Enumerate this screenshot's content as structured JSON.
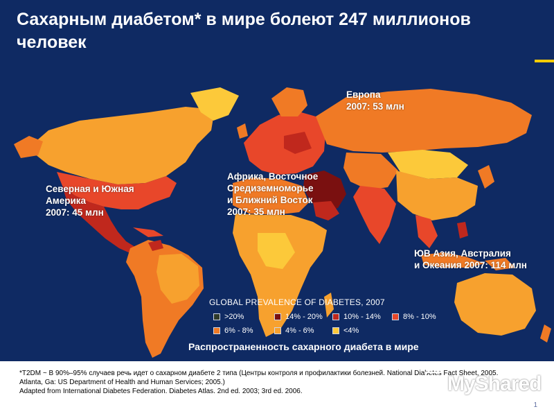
{
  "title": "Сахарным диабетом* в мире болеют 247 миллионов человек",
  "regions": [
    {
      "name": "europe",
      "text": "Европа\n2007: 53 млн"
    },
    {
      "name": "americas",
      "text": "Северная и Южная\nАмерика\n2007: 45 млн"
    },
    {
      "name": "africa-middle-east",
      "text": "Африка, Восточное\nСредиземноморье\nи Ближний Восток\n2007: 35 млн"
    },
    {
      "name": "se-asia-oceania",
      "text": "ЮВ Азия, Австралия\nи Океания 2007: 114 млн"
    }
  ],
  "legend": {
    "title": "GLOBAL PREVALENCE OF DIABETES, 2007",
    "items": [
      {
        "label": ">20%",
        "color": "#2f3a2a"
      },
      {
        "label": "14% - 20%",
        "color": "#7a1010"
      },
      {
        "label": "10% - 14%",
        "color": "#c0281d"
      },
      {
        "label": "8% - 10%",
        "color": "#e8472a"
      },
      {
        "label": "6% - 8%",
        "color": "#f07a25"
      },
      {
        "label": "4% - 6%",
        "color": "#f7a12e"
      },
      {
        "label": "<4%",
        "color": "#fcc93a"
      }
    ]
  },
  "map_caption": "Распространенность сахарного диабета в мире",
  "footnote": {
    "line1": "*T2DM ~ В 90%–95% случаев речь идет о сахарном диабете 2 типа (Центры контроля и профилактики болезней. National Diabetes Fact Sheet, 2005. Atlanta, Ga: US Department of Health and Human Services; 2005.)",
    "line2": "Adapted from International Diabetes Federation. Diabetes Atlas. 2nd ed. 2003; 3rd ed. 2006."
  },
  "page_number": "1",
  "watermark": "MyShared",
  "colors": {
    "background": "#0f2a63",
    "accent": "#ffcc00"
  }
}
